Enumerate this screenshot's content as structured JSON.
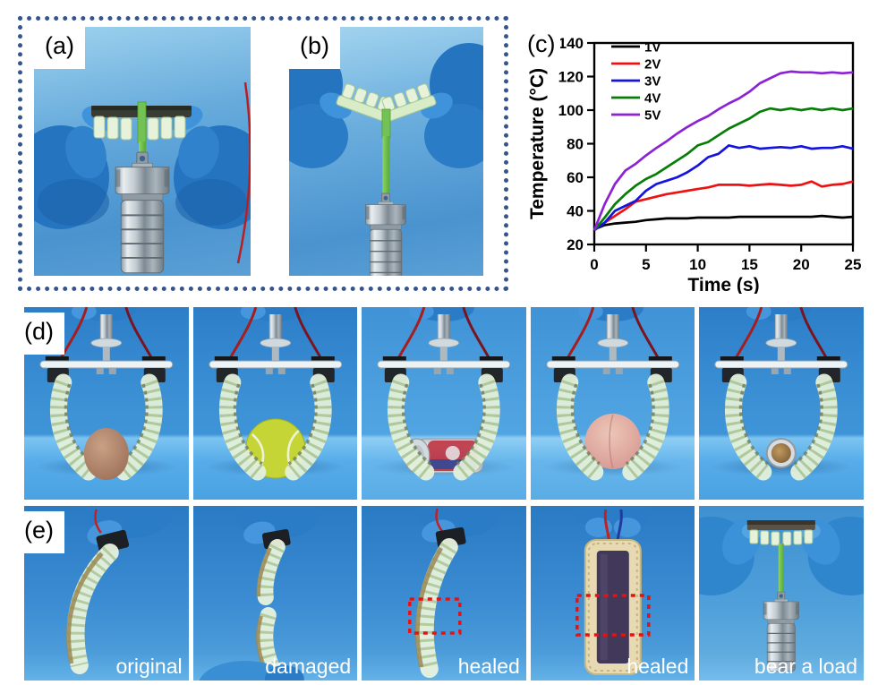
{
  "figure": {
    "panel_labels": {
      "a": "(a)",
      "b": "(b)",
      "c": "(c)",
      "d": "(d)",
      "e": "(e)"
    },
    "captions_e": [
      "original",
      "damaged",
      "healed",
      "healed",
      "bear a load"
    ],
    "colors": {
      "frame_dotted": "#35558e",
      "caption_text": "#ffffff",
      "heal_marker_red": "#e81111",
      "photo_background_blue": "#3d92d6"
    }
  },
  "chart_data": {
    "type": "line",
    "title": "",
    "xlabel": "Time (s)",
    "ylabel": "Temperature (°C)",
    "xlim": [
      0,
      25
    ],
    "ylim": [
      20,
      140
    ],
    "xticks": [
      0,
      5,
      10,
      15,
      20,
      25
    ],
    "yticks": [
      20,
      40,
      60,
      80,
      100,
      120,
      140
    ],
    "grid": false,
    "legend_position": "upper-left",
    "x": [
      0,
      1,
      2,
      3,
      4,
      5,
      6,
      7,
      8,
      9,
      10,
      11,
      12,
      13,
      14,
      15,
      16,
      17,
      18,
      19,
      20,
      21,
      22,
      23,
      24,
      25
    ],
    "series": [
      {
        "name": "1V",
        "color": "#000000",
        "values": [
          29,
          31.5,
          32.5,
          33,
          33.5,
          34.5,
          35,
          35.5,
          35.5,
          35.5,
          36,
          36,
          36,
          36,
          36.5,
          36.5,
          36.5,
          36.5,
          36.5,
          36.5,
          36.5,
          36.5,
          37,
          36.5,
          36,
          36.5
        ]
      },
      {
        "name": "2V",
        "color": "#ee1111",
        "values": [
          28.5,
          33,
          37,
          41,
          45.5,
          47,
          48.5,
          50,
          51,
          52,
          53,
          54,
          55.5,
          55.5,
          55.5,
          55,
          55.5,
          56,
          55.5,
          55,
          55.5,
          57.5,
          54.5,
          55.5,
          56,
          57.5
        ]
      },
      {
        "name": "3V",
        "color": "#1414e0",
        "values": [
          28.5,
          33,
          40,
          43,
          46,
          52,
          56,
          58,
          60,
          63,
          67,
          72,
          74,
          79,
          77.5,
          78.5,
          77,
          77.5,
          78,
          77.5,
          78.5,
          77,
          77.5,
          77.5,
          78.5,
          77
        ]
      },
      {
        "name": "4V",
        "color": "#067d06",
        "values": [
          28.5,
          36,
          44,
          50,
          55,
          59,
          62,
          66,
          70,
          74,
          79,
          81,
          85,
          89,
          92,
          95,
          99,
          101,
          100,
          101,
          100,
          101,
          100,
          101,
          100,
          101
        ]
      },
      {
        "name": "5V",
        "color": "#8c22d5",
        "values": [
          28.5,
          44,
          56,
          64,
          68,
          73,
          77.5,
          81.5,
          86,
          90,
          93.5,
          96.5,
          100.5,
          104,
          107,
          111,
          116,
          119,
          122,
          123,
          122.5,
          122.5,
          122,
          122.5,
          122,
          122.5
        ]
      }
    ]
  }
}
